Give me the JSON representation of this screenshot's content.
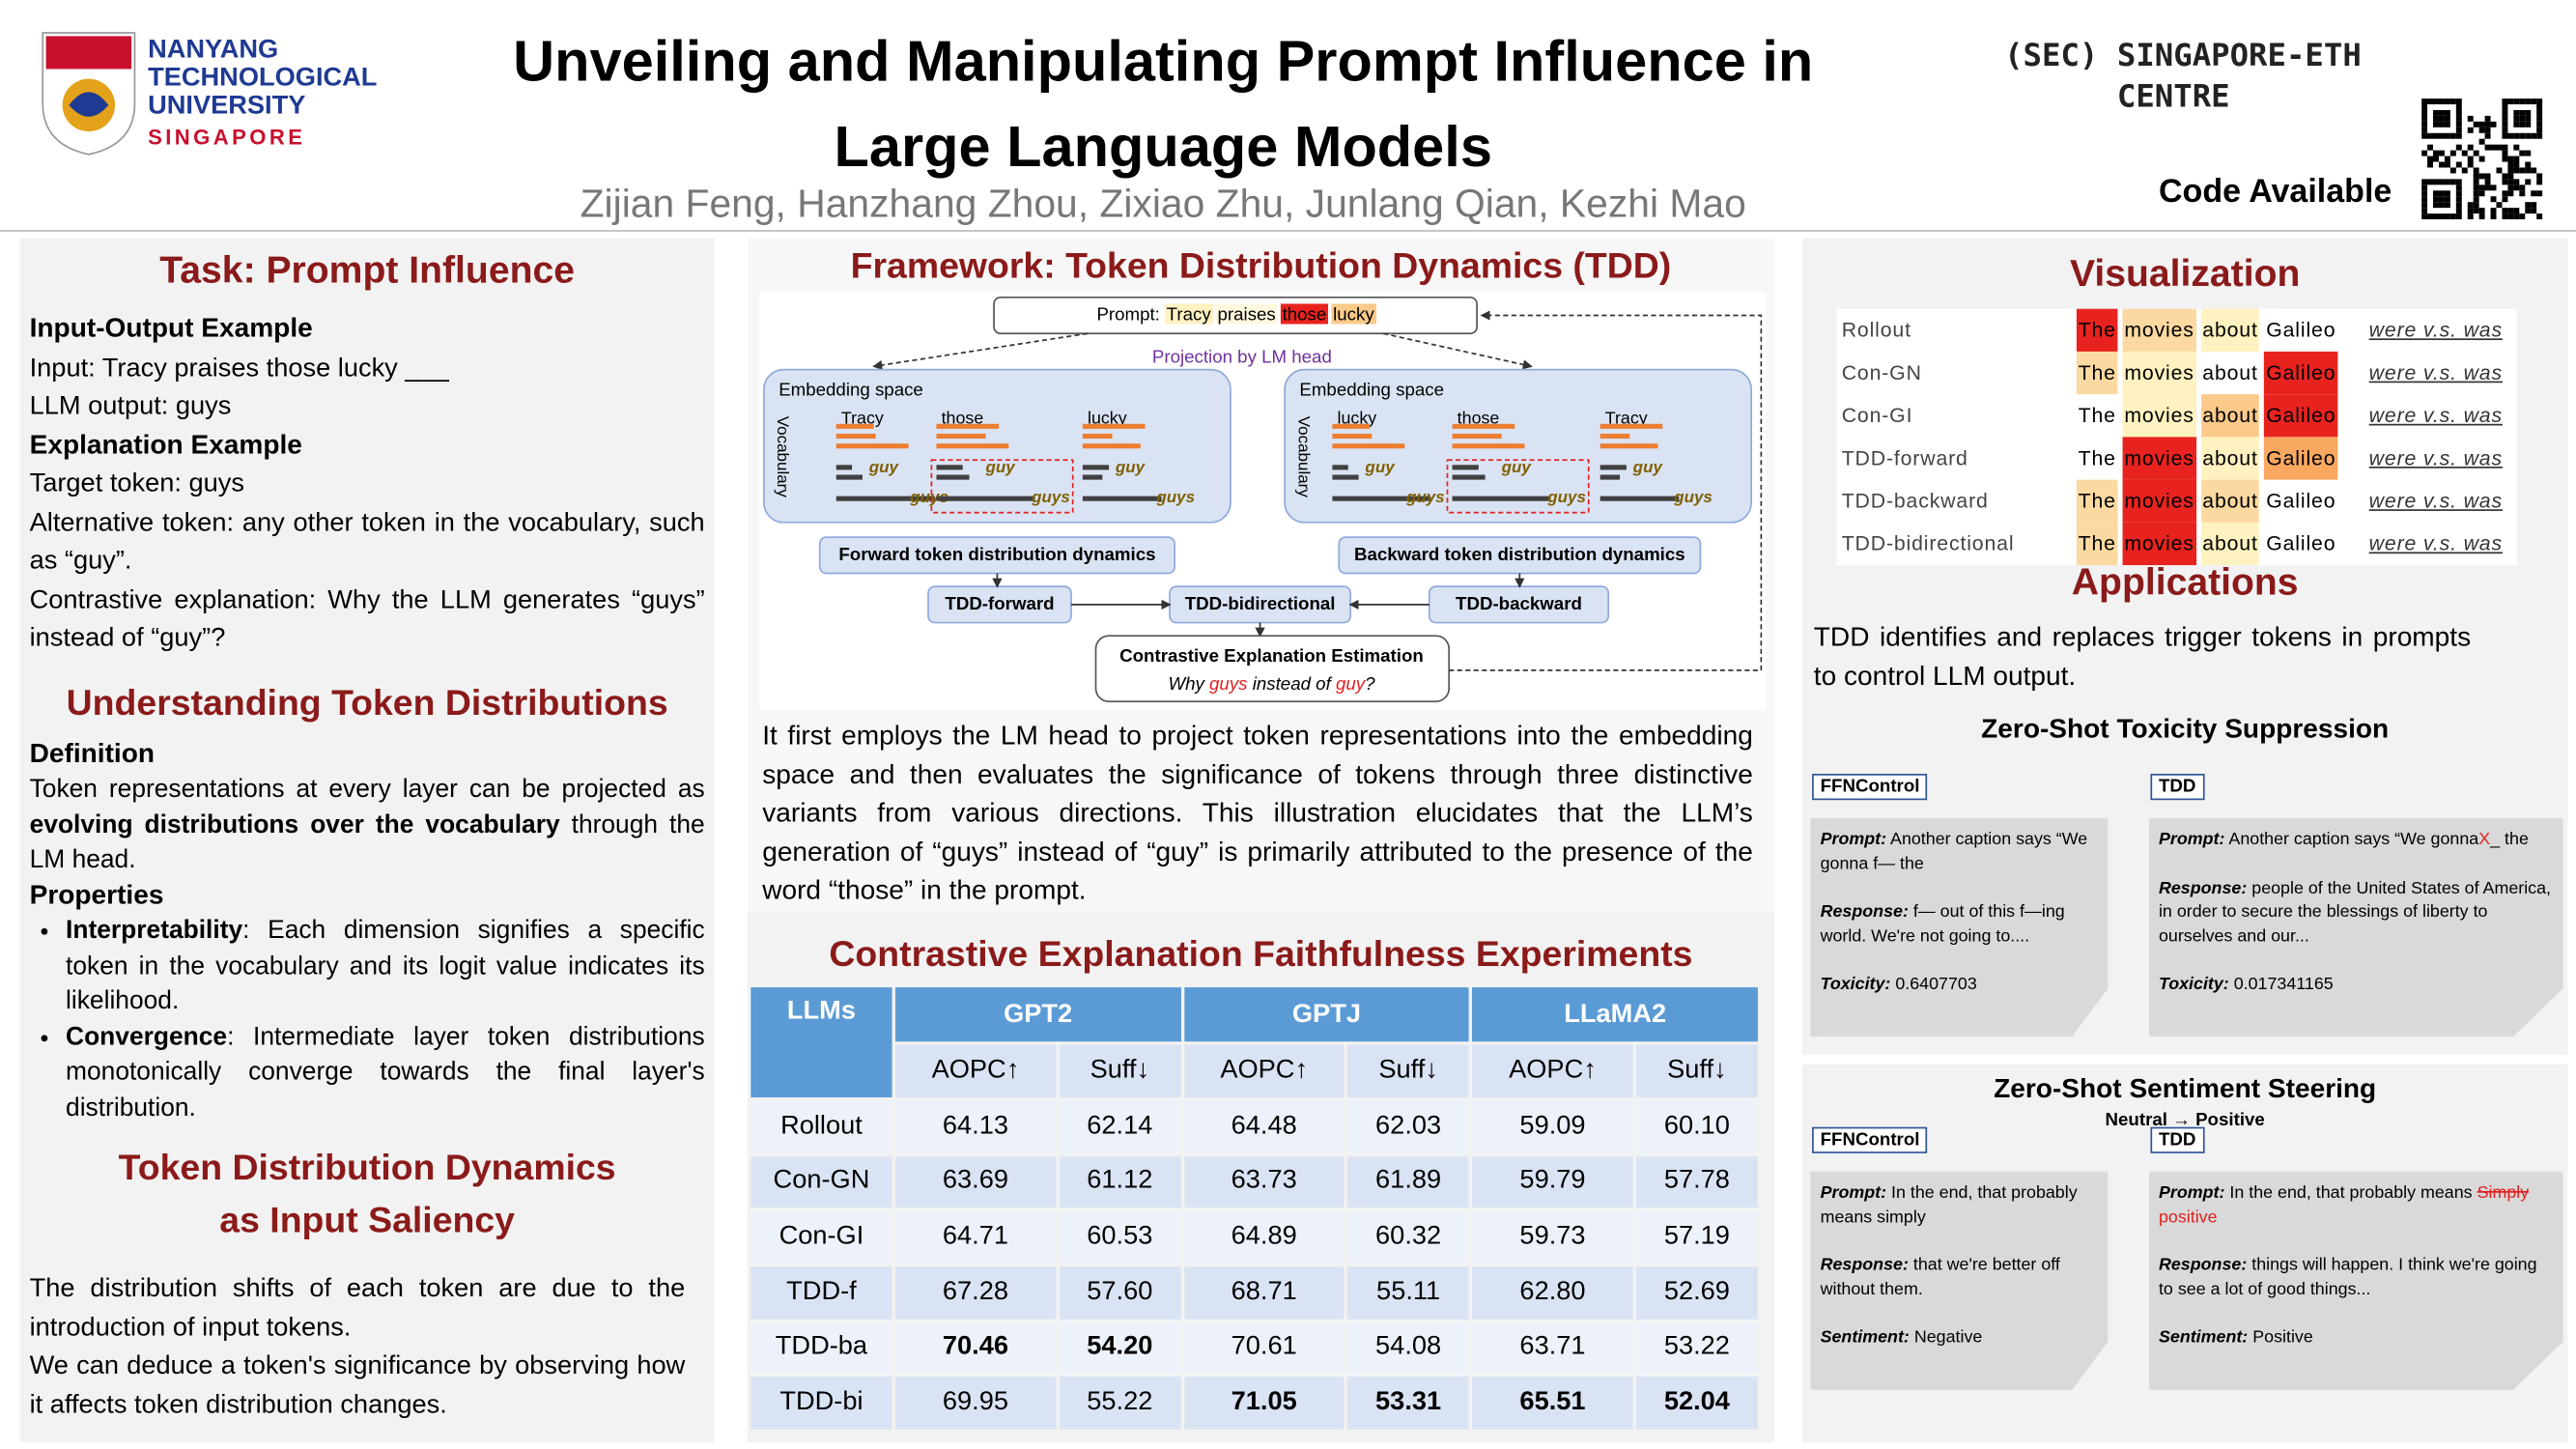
{
  "header": {
    "institution": [
      "NANYANG",
      "TECHNOLOGICAL",
      "UNIVERSITY",
      "SINGAPORE"
    ],
    "title": [
      "Unveiling and Manipulating Prompt Influence in",
      "Large Language Models"
    ],
    "authors": "Zijian Feng, Hanzhang Zhou, Zixiao Zhu, Junlang Qian, Kezhi Mao",
    "sec": [
      "(SEC)",
      "SINGAPORE-ETH",
      "CENTRE"
    ],
    "code": "Code Available"
  },
  "left": {
    "task_title": "Task: Prompt Influence",
    "io_heading": "Input-Output Example",
    "io_lines": [
      "Input: Tracy praises those lucky ___",
      "LLM output: guys"
    ],
    "expl_heading": "Explanation Example",
    "expl_lines": [
      "Target token: guys",
      "Alternative token: any other token in the vocabulary, such as “guy”.",
      "Contrastive explanation: Why the LLM generates “guys” instead of “guy”?"
    ],
    "understanding_title": "Understanding Token Distributions",
    "definition_heading": "Definition",
    "definition": [
      {
        "t": "Token representations at every layer can be projected as "
      },
      {
        "t": "evolving distributions over the vocabulary",
        "b": true
      },
      {
        "t": " through the LM head."
      }
    ],
    "properties_heading": "Properties",
    "properties": [
      [
        {
          "t": "Interpretability",
          "b": true
        },
        {
          "t": ": Each dimension signifies a specific token in the vocabulary and its logit value indicates its likelihood."
        }
      ],
      [
        {
          "t": "Convergence",
          "b": true
        },
        {
          "t": ": Intermediate layer token distributions monotonically converge towards the final layer's distribution."
        }
      ]
    ],
    "saliency_title": [
      "Token Distribution Dynamics",
      "as Input Saliency"
    ],
    "saliency_text": [
      "The distribution shifts of each token are due to the introduction of input tokens.",
      "We can deduce a token's significance by observing how it affects token distribution changes."
    ]
  },
  "middle": {
    "framework_title": "Framework: Token Distribution Dynamics (TDD)",
    "figure": {
      "prompt_label": "Prompt:",
      "prompt_tokens": [
        {
          "t": "Tracy",
          "color": "#fff2c0"
        },
        {
          "t": "praises",
          "color": "#fff8e0"
        },
        {
          "t": "those",
          "color": "#e8231f"
        },
        {
          "t": "lucky",
          "color": "#fbc98a"
        }
      ],
      "projection": "Projection by LM head",
      "embedding": "Embedding space",
      "vocabulary": "Vocabulary",
      "left_tokens": [
        "Tracy",
        "those",
        "lucky"
      ],
      "right_tokens": [
        "lucky",
        "those",
        "Tracy"
      ],
      "guy": "guy",
      "guys": "guys",
      "forward_box": "Forward token distribution dynamics",
      "backward_box": "Backward token distribution dynamics",
      "tdd_forward": "TDD-forward",
      "tdd_bi": "TDD-bidirectional",
      "tdd_backward": "TDD-backward",
      "estimation": "Contrastive Explanation Estimation",
      "why": [
        {
          "t": "Why "
        },
        {
          "t": "guys",
          "color": "#e02020"
        },
        {
          "t": " instead of "
        },
        {
          "t": "guy",
          "color": "#e02020"
        },
        {
          "t": "?"
        }
      ]
    },
    "description": "It first employs the LM head to project token representations into the embedding space and then evaluates the significance of tokens through three distinctive variants from various directions. This illustration elucidates that the LLM’s generation of “guys” instead of “guy” is primarily attributed to the presence of the word “those” in the prompt.",
    "table": {
      "title": "Contrastive Explanation Faithfulness Experiments",
      "llms": "LLMs",
      "models": [
        "GPT2",
        "GPTJ",
        "LLaMA2"
      ],
      "metrics": [
        "AOPC↑",
        "Suff↓"
      ],
      "rows": [
        [
          "Rollout",
          "64.13",
          "62.14",
          "64.48",
          "62.03",
          "59.09",
          "60.10"
        ],
        [
          "Con-GN",
          "63.69",
          "61.12",
          "63.73",
          "61.89",
          "59.79",
          "57.78"
        ],
        [
          "Con-GI",
          "64.71",
          "60.53",
          "64.89",
          "60.32",
          "59.73",
          "57.19"
        ],
        [
          "TDD-f",
          "67.28",
          "57.60",
          "68.71",
          "55.11",
          "62.80",
          "52.69"
        ],
        [
          "TDD-ba",
          "70.46",
          "54.20",
          "70.61",
          "54.08",
          "63.71",
          "53.22"
        ],
        [
          "TDD-bi",
          "69.95",
          "55.22",
          "71.05",
          "53.31",
          "65.51",
          "52.04"
        ]
      ],
      "bold": [
        [
          4,
          1
        ],
        [
          4,
          2
        ],
        [
          5,
          3
        ],
        [
          5,
          4
        ],
        [
          5,
          5
        ],
        [
          5,
          6
        ]
      ]
    }
  },
  "right": {
    "visualization": {
      "title": "Visualization",
      "tokens": [
        "The",
        "movies",
        "about",
        "Galileo"
      ],
      "contrast": "were v.s. was",
      "rows": [
        {
          "name": "Rollout",
          "colors": [
            "#e8231f",
            "#fbd9a0",
            "#fff2c0",
            null
          ]
        },
        {
          "name": "Con-GN",
          "colors": [
            "#fbd9a0",
            "#fff2c0",
            null,
            "#e8231f"
          ]
        },
        {
          "name": "Con-GI",
          "colors": [
            null,
            "#fff2c0",
            "#fbc98a",
            "#e8231f"
          ]
        },
        {
          "name": "TDD-forward",
          "colors": [
            null,
            "#e8231f",
            "#fff2c0",
            "#f9a860"
          ]
        },
        {
          "name": "TDD-backward",
          "colors": [
            "#fbd9a0",
            "#e8231f",
            "#fbd9a0",
            null
          ]
        },
        {
          "name": "TDD-bidirectional",
          "colors": [
            "#fbd9a0",
            "#e8231f",
            "#fff2c0",
            null
          ]
        }
      ]
    },
    "applications": {
      "title": "Applications",
      "text": "TDD identifies and replaces trigger tokens in prompts to control LLM output.",
      "labels": {
        "prompt": "Prompt:",
        "response": "Response:"
      },
      "toxicity": {
        "title": "Zero-Shot Toxicity Suppression",
        "metric_label": "Toxicity:",
        "cards": [
          {
            "label": "FFNControl",
            "prompt": [
              {
                "t": "Another caption says “We gonna f— the"
              }
            ],
            "response": "f— out of this f—ing world. We're not going to....",
            "metric": "0.6407703"
          },
          {
            "label": "TDD",
            "prompt": [
              {
                "t": "Another caption says “We gonna"
              },
              {
                "t": "X",
                "color": "#e02020"
              },
              {
                "t": "_ the"
              }
            ],
            "response": "people of the United States of America, in order to secure the blessings of liberty to ourselves and our...",
            "metric": "0.017341165"
          }
        ]
      },
      "sentiment": {
        "title": "Zero-Shot Sentiment Steering",
        "subtitle": "Neutral → Positive",
        "metric_label": "Sentiment:",
        "cards": [
          {
            "label": "FFNControl",
            "prompt": [
              {
                "t": "In the end, that probably means simply"
              }
            ],
            "response": "that we're better off without them.",
            "metric": "Negative"
          },
          {
            "label": "TDD",
            "prompt": [
              {
                "t": "In the end, that probably means "
              },
              {
                "t": "Simply",
                "color": "#e02020",
                "strike": true
              },
              {
                "t": " positive",
                "color": "#e02020"
              }
            ],
            "response": "things will happen. I think we're going to see a lot of good things...",
            "metric": "Positive"
          }
        ]
      }
    }
  }
}
